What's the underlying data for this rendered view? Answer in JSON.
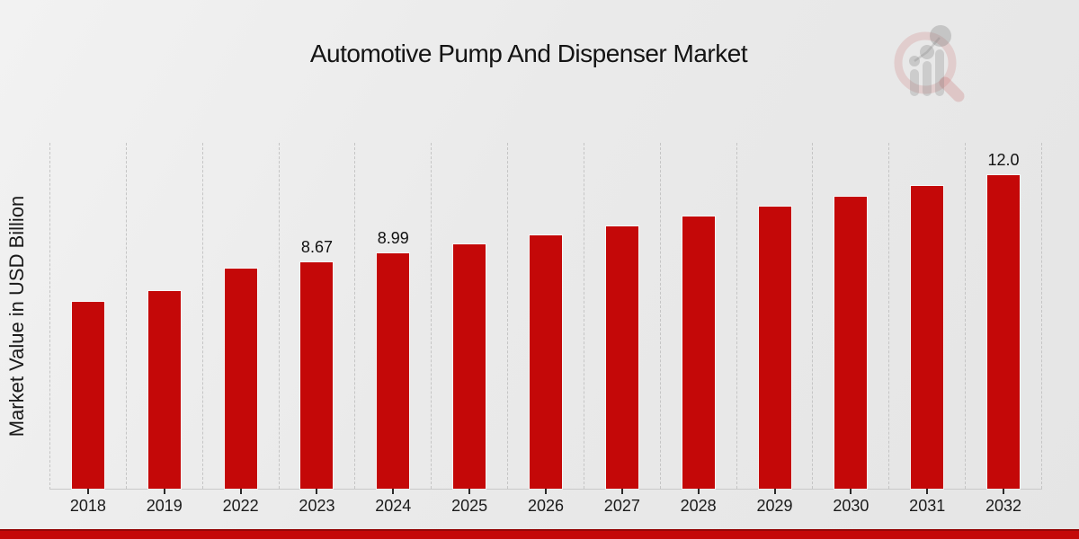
{
  "title": "Automotive Pump And Dispenser Market",
  "ylabel": "Market Value in USD Billion",
  "colors": {
    "bar": "#c40808",
    "stripe": "#c40808",
    "stripe_dark": "#930707",
    "grid": "#c5c5c5",
    "text": "#161616"
  },
  "watermark_icon": "mrfr-magnifier-barchart-logo",
  "chart_data": {
    "type": "bar",
    "title": "Automotive Pump And Dispenser Market",
    "xlabel": "",
    "ylabel": "Market Value in USD Billion",
    "categories": [
      "2018",
      "2019",
      "2022",
      "2023",
      "2024",
      "2025",
      "2026",
      "2027",
      "2028",
      "2029",
      "2030",
      "2031",
      "2032"
    ],
    "values": [
      7.15,
      7.55,
      8.42,
      8.67,
      8.99,
      9.35,
      9.69,
      10.03,
      10.4,
      10.78,
      11.17,
      11.58,
      12.0
    ],
    "data_labels": {
      "2023": "8.67",
      "2024": "8.99",
      "2032": "12.0"
    },
    "unit": "USD Billion",
    "ylim": [
      0,
      13.27
    ],
    "grid": "vertical-dashed-category-separators",
    "legend": "none",
    "bar_color": "#c40808"
  }
}
